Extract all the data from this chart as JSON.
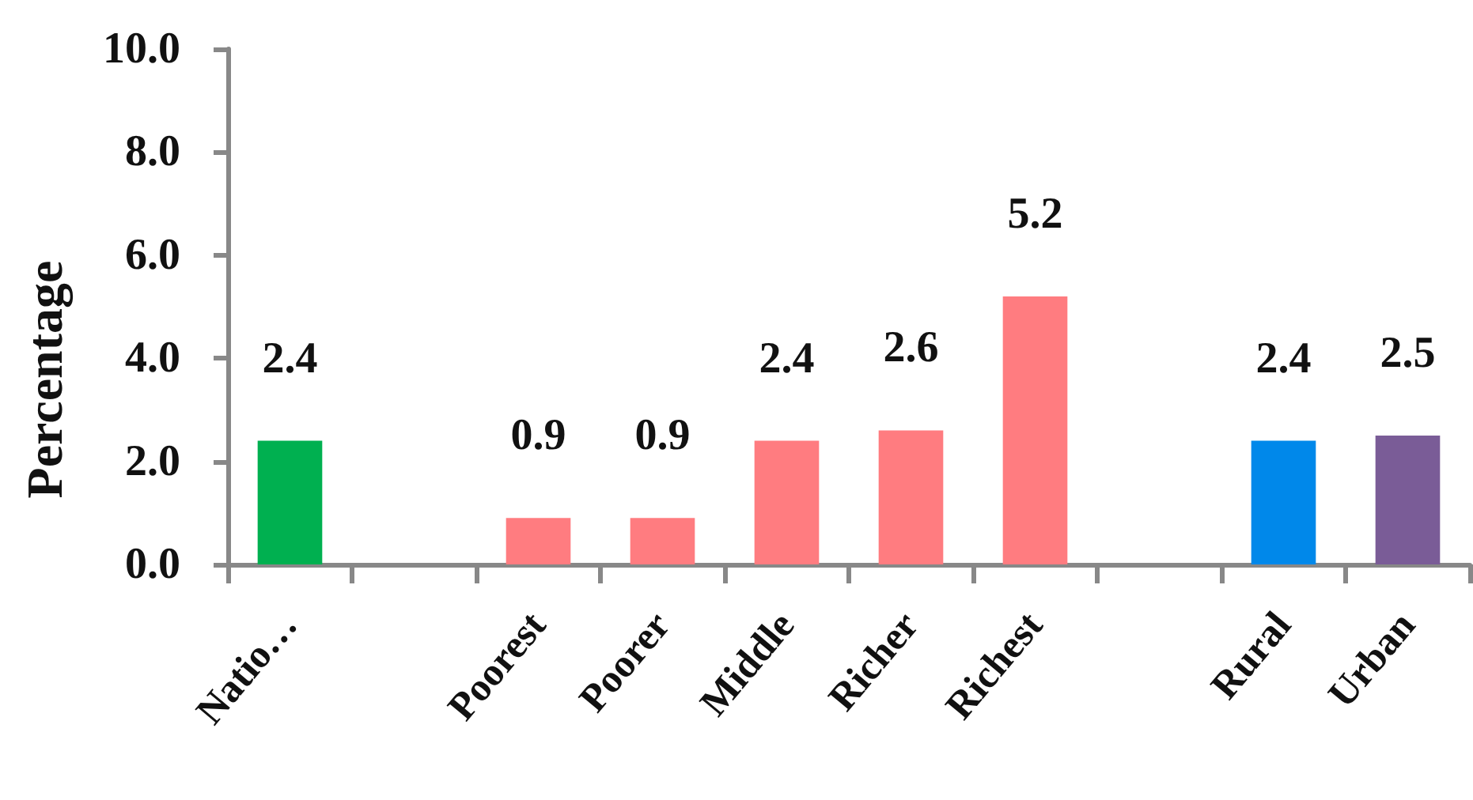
{
  "chart_data": {
    "type": "bar",
    "ylabel": "Percentage",
    "categories": [
      "Natio…",
      null,
      "Poorest",
      "Poorer",
      "Middle",
      "Richer",
      "Richest",
      null,
      "Rural",
      "Urban"
    ],
    "values": [
      2.4,
      null,
      0.9,
      0.9,
      2.4,
      2.6,
      5.2,
      null,
      2.4,
      2.5
    ],
    "colors": [
      "#00b050",
      null,
      "#ff7c80",
      "#ff7c80",
      "#ff7c80",
      "#ff7c80",
      "#ff7c80",
      null,
      "#0088ea",
      "#7a5c97"
    ],
    "ylim": [
      0,
      10
    ],
    "yticks": [
      {
        "value": 0,
        "label": "0.0"
      },
      {
        "value": 2,
        "label": "2.0"
      },
      {
        "value": 4,
        "label": "4.0"
      },
      {
        "value": 6,
        "label": "6.0"
      },
      {
        "value": 8,
        "label": "8.0"
      },
      {
        "value": 10,
        "label": "10.0"
      }
    ],
    "data_labels": true,
    "grid": false
  }
}
